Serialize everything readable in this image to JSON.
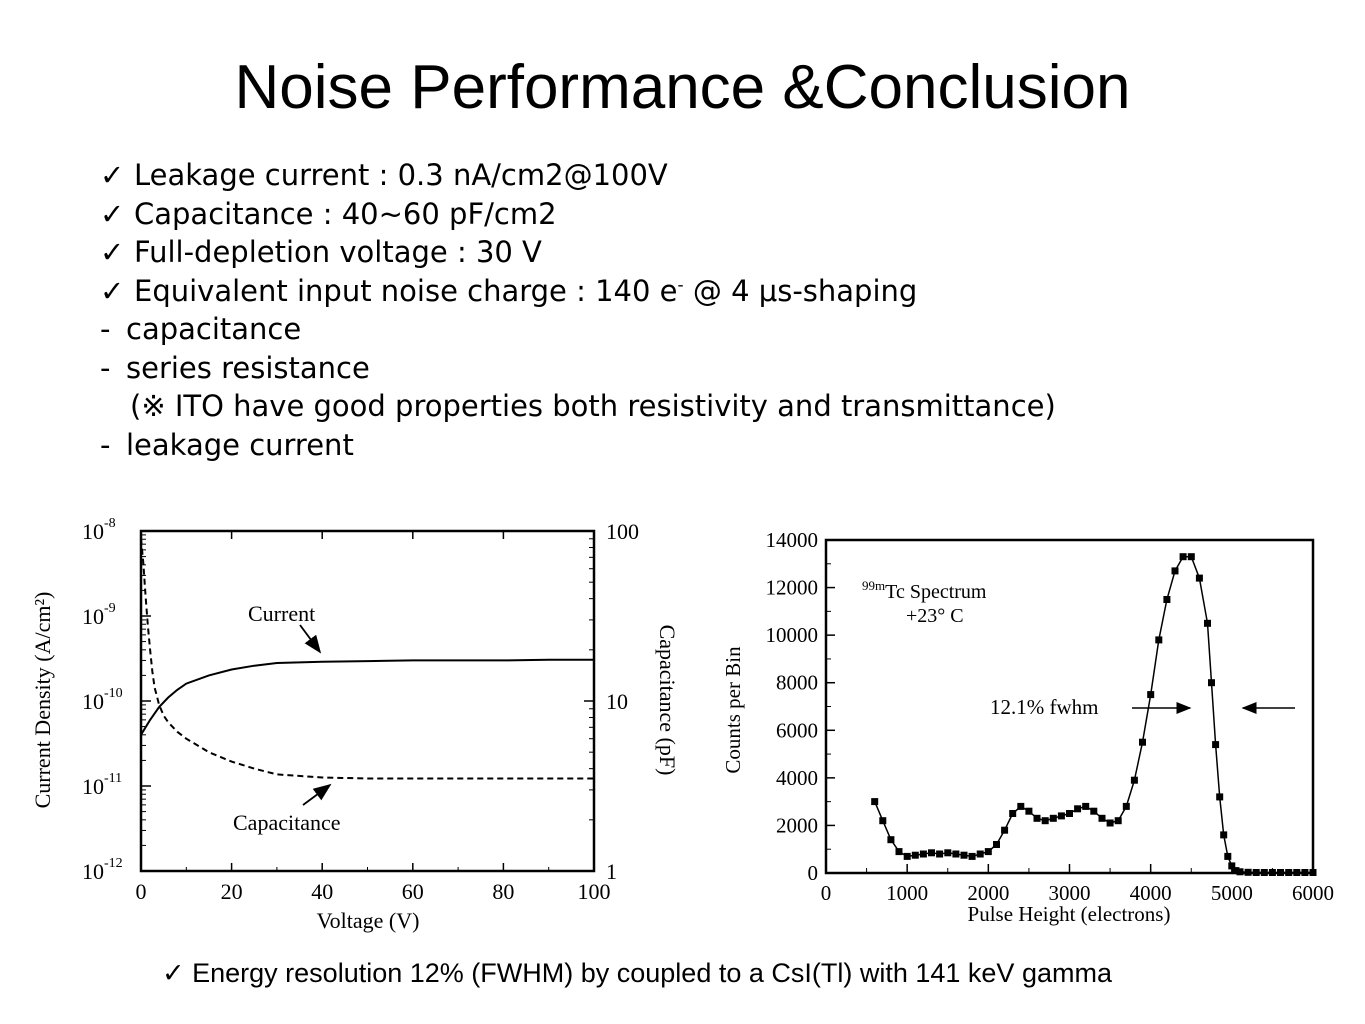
{
  "title": "Noise Performance &Conclusion",
  "bullets": [
    {
      "kind": "check",
      "text": "Leakage current : 0.3 nA/cm2@100V"
    },
    {
      "kind": "check",
      "text": "Capacitance : 40~60 pF/cm2"
    },
    {
      "kind": "check",
      "text": "Full-depletion voltage : 30 V"
    },
    {
      "kind": "check",
      "text_before": "Equivalent input noise charge : 140 e",
      "sup": "-",
      "text_after": " @ 4 μs-shaping"
    },
    {
      "kind": "dash",
      "text": "capacitance"
    },
    {
      "kind": "dash",
      "text": "series resistance"
    },
    {
      "kind": "note",
      "text": "(※ ITO have good properties both resistivity and transmittance)"
    },
    {
      "kind": "dash",
      "text": "leakage current"
    }
  ],
  "footer": "✓ Energy resolution 12% (FWHM) by coupled to a CsI(Tl) with 141 keV gamma",
  "chart_data": [
    {
      "type": "line",
      "xlabel": "Voltage (V)",
      "ylabel": "Current Density (A/cm²)",
      "y2label": "Capacitance (pF)",
      "xlim": [
        0,
        100
      ],
      "ylim": [
        1e-12,
        1e-08
      ],
      "y2lim": [
        1,
        100
      ],
      "yscale": "log",
      "y2scale": "log",
      "x_ticks": [
        "0",
        "20",
        "40",
        "60",
        "80",
        "100"
      ],
      "y_ticks": [
        {
          "base": "10",
          "exp": "-12"
        },
        {
          "base": "10",
          "exp": "-11"
        },
        {
          "base": "10",
          "exp": "-10"
        },
        {
          "base": "10",
          "exp": "-9"
        },
        {
          "base": "10",
          "exp": "-8"
        }
      ],
      "y2_ticks": [
        "1",
        "10",
        "100"
      ],
      "series": [
        {
          "name": "Current",
          "axis": "left",
          "style": "solid",
          "x": [
            0,
            2,
            4,
            6,
            8,
            10,
            15,
            20,
            25,
            30,
            40,
            50,
            60,
            70,
            80,
            90,
            100
          ],
          "y": [
            4e-11,
            6e-11,
            8.5e-11,
            1.1e-10,
            1.35e-10,
            1.6e-10,
            2e-10,
            2.35e-10,
            2.6e-10,
            2.8e-10,
            2.9e-10,
            2.95e-10,
            3e-10,
            3e-10,
            3e-10,
            3.05e-10,
            3.05e-10
          ]
        },
        {
          "name": "Capacitance",
          "axis": "right",
          "style": "dashed",
          "x": [
            0,
            0.5,
            1,
            1.5,
            2,
            2.5,
            3,
            4,
            5,
            6,
            8,
            10,
            15,
            20,
            25,
            30,
            40,
            50,
            60,
            80,
            100
          ],
          "y": [
            90,
            65,
            42,
            28,
            20,
            15,
            12,
            9.5,
            8.2,
            7.5,
            6.6,
            6,
            5,
            4.4,
            4,
            3.7,
            3.55,
            3.5,
            3.5,
            3.5,
            3.5
          ]
        }
      ],
      "annotations": [
        "Current",
        "Capacitance"
      ]
    },
    {
      "type": "scatter",
      "title": "99mTc Spectrum +23° C",
      "title_sup": "99m",
      "title_main": "Tc Spectrum",
      "title_line2": "+23° C",
      "xlabel": "Pulse Height (electrons)",
      "ylabel": "Counts per Bin",
      "xlim": [
        0,
        6000
      ],
      "ylim": [
        0,
        14000
      ],
      "x_ticks": [
        "0",
        "1000",
        "2000",
        "3000",
        "4000",
        "5000",
        "6000"
      ],
      "y_ticks": [
        "0",
        "2000",
        "4000",
        "6000",
        "8000",
        "10000",
        "12000",
        "14000"
      ],
      "annotation": "12.1% fwhm",
      "series": [
        {
          "name": "",
          "x": [
            600,
            700,
            800,
            900,
            1000,
            1100,
            1200,
            1300,
            1400,
            1500,
            1600,
            1700,
            1800,
            1900,
            2000,
            2100,
            2200,
            2300,
            2400,
            2500,
            2600,
            2700,
            2800,
            2900,
            3000,
            3100,
            3200,
            3300,
            3400,
            3500,
            3600,
            3700,
            3800,
            3900,
            4000,
            4100,
            4200,
            4300,
            4400,
            4500,
            4600,
            4700,
            4750,
            4800,
            4850,
            4900,
            4950,
            5000,
            5050,
            5100,
            5200,
            5300,
            5400,
            5500,
            5600,
            5700,
            5800,
            5900,
            6000
          ],
          "y": [
            3000,
            2200,
            1400,
            900,
            700,
            750,
            800,
            850,
            800,
            850,
            800,
            750,
            700,
            800,
            900,
            1200,
            1800,
            2500,
            2800,
            2600,
            2300,
            2200,
            2300,
            2400,
            2500,
            2700,
            2800,
            2600,
            2300,
            2100,
            2200,
            2800,
            3900,
            5500,
            7500,
            9800,
            11500,
            12700,
            13300,
            13300,
            12400,
            10500,
            8000,
            5400,
            3200,
            1600,
            700,
            300,
            100,
            50,
            30,
            20,
            20,
            20,
            20,
            20,
            20,
            20,
            20
          ]
        }
      ]
    }
  ]
}
